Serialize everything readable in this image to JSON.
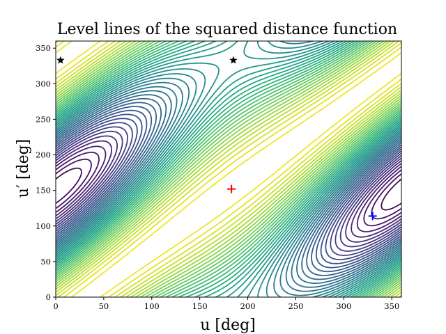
{
  "chart_data": {
    "type": "contour",
    "title": "Level lines of the squared distance function",
    "xlabel": "u [deg]",
    "ylabel": "u′ [deg]",
    "xlim": [
      0,
      360
    ],
    "ylim": [
      0,
      360
    ],
    "xticks": [
      "0",
      "50",
      "100",
      "150",
      "200",
      "250",
      "300",
      "350"
    ],
    "yticks": [
      "0",
      "50",
      "100",
      "150",
      "200",
      "250",
      "300",
      "350"
    ],
    "grid": false,
    "colormap": "viridis",
    "markers": [
      {
        "name": "red-plus",
        "shape": "plus",
        "color": "#ff0000",
        "x": 183,
        "y": 152
      },
      {
        "name": "blue-plus",
        "shape": "plus",
        "color": "#0000ff",
        "x": 330,
        "y": 114
      },
      {
        "name": "star-left",
        "shape": "star",
        "color": "#000000",
        "x": 5,
        "y": 333
      },
      {
        "name": "star-middle",
        "shape": "star",
        "color": "#000000",
        "x": 185,
        "y": 333
      }
    ]
  }
}
